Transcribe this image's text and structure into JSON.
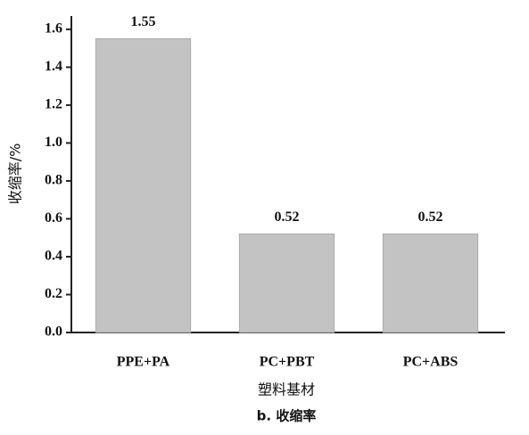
{
  "chart_data": {
    "type": "bar",
    "title": "b. 收缩率",
    "x_label": "塑料基材",
    "y_label": "收缩率/%",
    "categories": [
      "PPE+PA",
      "PC+PBT",
      "PC+ABS"
    ],
    "values": [
      1.55,
      0.52,
      0.52
    ],
    "color": "#c3c3c3",
    "ylim": [
      0,
      1.67
    ],
    "yticks": [
      {
        "value": 0,
        "label": "0.0"
      },
      0.2,
      0.4,
      0.6,
      0.8,
      {
        "value": 1,
        "label": "1.0"
      },
      1.2,
      1.4,
      1.6
    ]
  }
}
